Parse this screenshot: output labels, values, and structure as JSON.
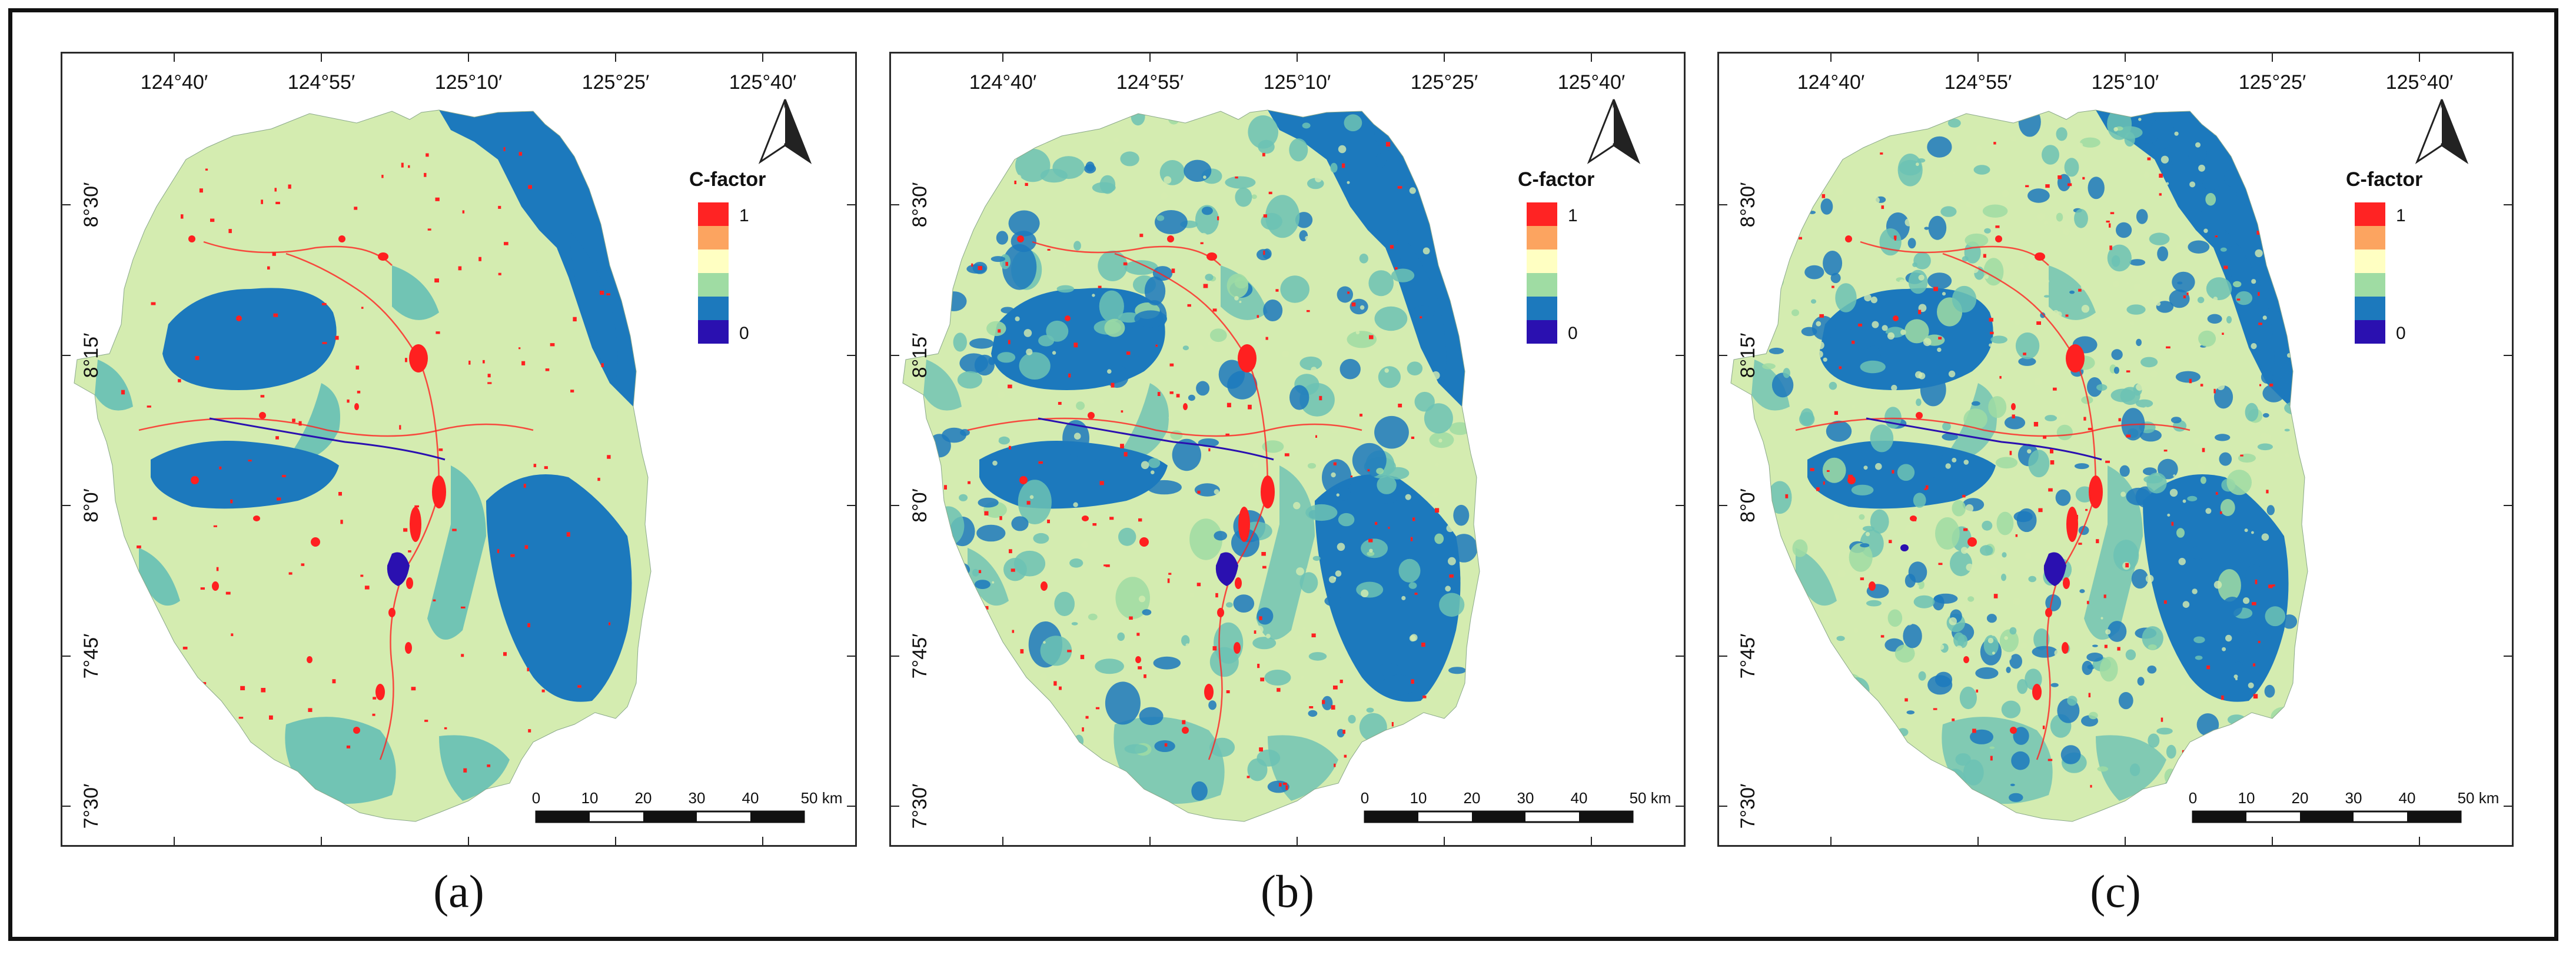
{
  "map": {
    "longitude_labels": [
      "124°40′",
      "124°55′",
      "125°10′",
      "125°25′",
      "125°40′"
    ],
    "latitude_labels": [
      "8°30′",
      "8°15′",
      "8°0′",
      "7°45′",
      "7°30′"
    ],
    "legend": {
      "title": "C-factor",
      "max_label": "1",
      "min_label": "0",
      "classes": [
        "#ff2323",
        "#fca460",
        "#ffffc2",
        "#9fdca3",
        "#1c79bd",
        "#2a10b0"
      ]
    },
    "scale_bar": {
      "labels": [
        "0",
        "10",
        "20",
        "30",
        "40",
        "50 km"
      ]
    },
    "north_arrow": "north-arrow-icon",
    "colors": {
      "land_base": "#d4ecb0",
      "forest": "#1c79bd",
      "grassland": "#6cc2b4",
      "urban": "#ff2020",
      "water": "#2a10b0"
    }
  },
  "panels": [
    {
      "label": "(a)",
      "variant": "a"
    },
    {
      "label": "(b)",
      "variant": "b"
    },
    {
      "label": "(c)",
      "variant": "c"
    }
  ]
}
